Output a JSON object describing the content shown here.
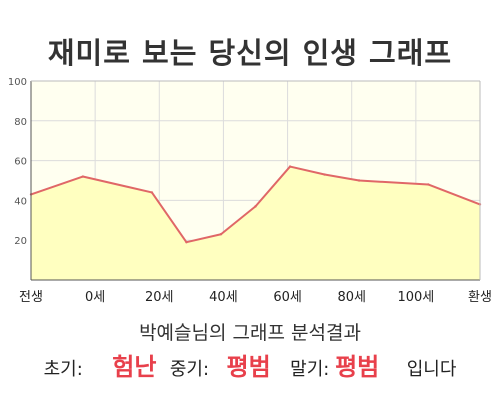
{
  "title": "재미로 보는 당신의 인생 그래프",
  "summary": "박예슬님의 그래프 분석결과",
  "result": {
    "early_label": "초기:",
    "early_value": "험난",
    "mid_label": "중기:",
    "mid_value": "평범",
    "late_label": "말기:",
    "late_value": "평범",
    "suffix": "입니다"
  },
  "colors": {
    "line": "#e06767",
    "fill": "#ffffc0",
    "plot_bg": "#fffff0",
    "grade": "#e8404b"
  },
  "chart_data": {
    "type": "area",
    "x_ticks": [
      "전생",
      "0세",
      "20세",
      "40세",
      "60세",
      "80세",
      "100세",
      "환생"
    ],
    "y_ticks": [
      "20",
      "40",
      "60",
      "80",
      "100"
    ],
    "ylim": [
      0,
      100
    ],
    "grid": true,
    "series": [
      {
        "values": [
          {
            "x": -15,
            "y": 43
          },
          {
            "x": 0,
            "y": 52
          },
          {
            "x": 20,
            "y": 44
          },
          {
            "x": 30,
            "y": 19
          },
          {
            "x": 40,
            "y": 23
          },
          {
            "x": 50,
            "y": 37
          },
          {
            "x": 60,
            "y": 57
          },
          {
            "x": 70,
            "y": 53
          },
          {
            "x": 80,
            "y": 50
          },
          {
            "x": 100,
            "y": 48
          },
          {
            "x": 115,
            "y": 38
          }
        ]
      }
    ]
  }
}
